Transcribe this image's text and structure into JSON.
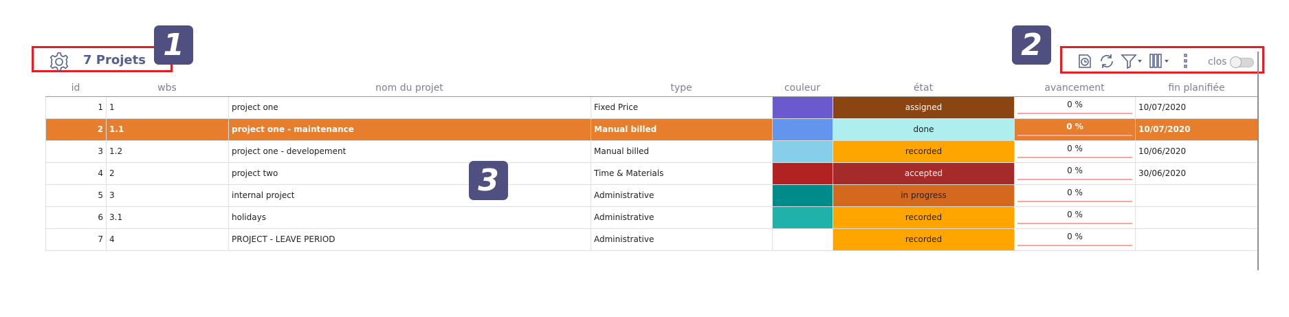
{
  "header": {
    "title": "7 Projets",
    "settings_icon": "gear-icon"
  },
  "markers": [
    "1",
    "2",
    "3"
  ],
  "toolbar": {
    "icons": [
      "new-project-icon",
      "refresh-icon",
      "filter-icon",
      "columns-icon",
      "more-vertical-icon"
    ],
    "closed_label": "clos",
    "closed_toggle_on": false
  },
  "table": {
    "columns": [
      "id",
      "wbs",
      "nom du projet",
      "type",
      "couleur",
      "état",
      "avancement",
      "fin planifiée"
    ],
    "rows": [
      {
        "id": "1",
        "wbs": "1",
        "name": "project one",
        "type": "Fixed Price",
        "color": "#6a5acd",
        "state": "assigned",
        "state_bg": "#8b4513",
        "state_fg": "#ffffff",
        "progress": "0 %",
        "end": "10/07/2020",
        "selected": false
      },
      {
        "id": "2",
        "wbs": "1.1",
        "name": "project one - maintenance",
        "type": "Manual billed",
        "color": "#6495ed",
        "state": "done",
        "state_bg": "#afeeee",
        "state_fg": "#222222",
        "progress": "0 %",
        "end": "10/07/2020",
        "selected": true
      },
      {
        "id": "3",
        "wbs": "1.2",
        "name": "project one - developement",
        "type": "Manual billed",
        "color": "#87ceeb",
        "state": "recorded",
        "state_bg": "#ffa500",
        "state_fg": "#222222",
        "progress": "0 %",
        "end": "10/06/2020",
        "selected": false
      },
      {
        "id": "4",
        "wbs": "2",
        "name": "project two",
        "type": "Time & Materials",
        "color": "#b22222",
        "state": "accepted",
        "state_bg": "#a52a2a",
        "state_fg": "#ffffff",
        "progress": "0 %",
        "end": "30/06/2020",
        "selected": false
      },
      {
        "id": "5",
        "wbs": "3",
        "name": "internal project",
        "type": "Administrative",
        "color": "#008b8b",
        "state": "in progress",
        "state_bg": "#d2691e",
        "state_fg": "#222222",
        "progress": "0 %",
        "end": "",
        "selected": false
      },
      {
        "id": "6",
        "wbs": "3.1",
        "name": "holidays",
        "type": "Administrative",
        "color": "#20b2aa",
        "state": "recorded",
        "state_bg": "#ffa500",
        "state_fg": "#222222",
        "progress": "0 %",
        "end": "",
        "selected": false
      },
      {
        "id": "7",
        "wbs": "4",
        "name": "PROJECT - LEAVE PERIOD",
        "type": "Administrative",
        "color": "#ffffff",
        "state": "recorded",
        "state_bg": "#ffa500",
        "state_fg": "#222222",
        "progress": "0 %",
        "end": "",
        "selected": false
      }
    ]
  }
}
